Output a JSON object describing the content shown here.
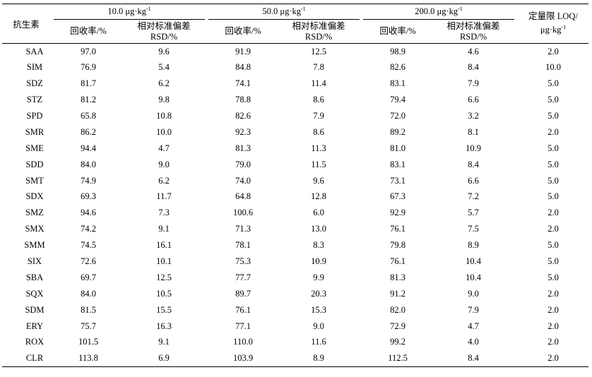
{
  "header": {
    "antibiotic": "抗生素",
    "groups": [
      {
        "label": "10.0 μg·kg",
        "sup": "-1"
      },
      {
        "label": "50.0 μg·kg",
        "sup": "-1"
      },
      {
        "label": "200.0 μg·kg",
        "sup": "-1"
      }
    ],
    "recovery": "回收率/%",
    "rsd_line1": "相对标准偏差",
    "rsd_line2": "RSD/%",
    "loq_line1": "定量限 LOQ/",
    "loq_line2": "μg·kg",
    "loq_sup": "-1"
  },
  "rows": [
    {
      "name": "SAA",
      "v": [
        "97.0",
        "9.6",
        "91.9",
        "12.5",
        "98.9",
        "4.6",
        "2.0"
      ]
    },
    {
      "name": "SIM",
      "v": [
        "76.9",
        "5.4",
        "84.8",
        "7.8",
        "82.6",
        "8.4",
        "10.0"
      ]
    },
    {
      "name": "SDZ",
      "v": [
        "81.7",
        "6.2",
        "74.1",
        "11.4",
        "83.1",
        "7.9",
        "5.0"
      ]
    },
    {
      "name": "STZ",
      "v": [
        "81.2",
        "9.8",
        "78.8",
        "8.6",
        "79.4",
        "6.6",
        "5.0"
      ]
    },
    {
      "name": "SPD",
      "v": [
        "65.8",
        "10.8",
        "82.6",
        "7.9",
        "72.0",
        "3.2",
        "5.0"
      ]
    },
    {
      "name": "SMR",
      "v": [
        "86.2",
        "10.0",
        "92.3",
        "8.6",
        "89.2",
        "8.1",
        "2.0"
      ]
    },
    {
      "name": "SME",
      "v": [
        "94.4",
        "4.7",
        "81.3",
        "11.3",
        "81.0",
        "10.9",
        "5.0"
      ]
    },
    {
      "name": "SDD",
      "v": [
        "84.0",
        "9.0",
        "79.0",
        "11.5",
        "83.1",
        "8.4",
        "5.0"
      ]
    },
    {
      "name": "SMT",
      "v": [
        "74.9",
        "6.2",
        "74.0",
        "9.6",
        "73.1",
        "6.6",
        "5.0"
      ]
    },
    {
      "name": "SDX",
      "v": [
        "69.3",
        "11.7",
        "64.8",
        "12.8",
        "67.3",
        "7.2",
        "5.0"
      ]
    },
    {
      "name": "SMZ",
      "v": [
        "94.6",
        "7.3",
        "100.6",
        "6.0",
        "92.9",
        "5.7",
        "2.0"
      ]
    },
    {
      "name": "SMX",
      "v": [
        "74.2",
        "9.1",
        "71.3",
        "13.0",
        "76.1",
        "7.5",
        "2.0"
      ]
    },
    {
      "name": "SMM",
      "v": [
        "74.5",
        "16.1",
        "78.1",
        "8.3",
        "79.8",
        "8.9",
        "5.0"
      ]
    },
    {
      "name": "SIX",
      "v": [
        "72.6",
        "10.1",
        "75.3",
        "10.9",
        "76.1",
        "10.4",
        "5.0"
      ]
    },
    {
      "name": "SBA",
      "v": [
        "69.7",
        "12.5",
        "77.7",
        "9.9",
        "81.3",
        "10.4",
        "5.0"
      ]
    },
    {
      "name": "SQX",
      "v": [
        "84.0",
        "10.5",
        "89.7",
        "20.3",
        "91.2",
        "9.0",
        "2.0"
      ]
    },
    {
      "name": "SDM",
      "v": [
        "81.5",
        "15.5",
        "76.1",
        "15.3",
        "82.0",
        "7.9",
        "2.0"
      ]
    },
    {
      "name": "ERY",
      "v": [
        "75.7",
        "16.3",
        "77.1",
        "9.0",
        "72.9",
        "4.7",
        "2.0"
      ]
    },
    {
      "name": "ROX",
      "v": [
        "101.5",
        "9.1",
        "110.0",
        "11.6",
        "99.2",
        "4.0",
        "2.0"
      ]
    },
    {
      "name": "CLR",
      "v": [
        "113.8",
        "6.9",
        "103.9",
        "8.9",
        "112.5",
        "8.4",
        "2.0"
      ]
    }
  ]
}
